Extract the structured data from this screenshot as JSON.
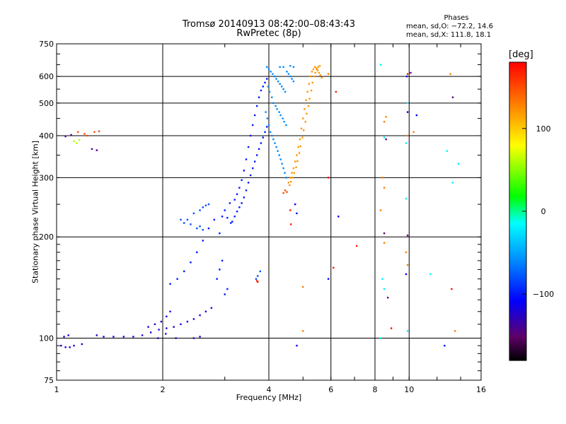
{
  "chart_data": {
    "type": "scatter",
    "title": "Tromsø 20140913 08:42:00–08:43:43",
    "subtitle": "RwPretec (8p)",
    "xlabel": "Frequency [MHz]",
    "ylabel": "Stationary phase Virtual Height [km]",
    "x_scale": "log",
    "y_scale": "log",
    "xlim": [
      1,
      16
    ],
    "ylim": [
      75,
      750
    ],
    "x_ticks": [
      1,
      2,
      4,
      6,
      8,
      10,
      16
    ],
    "x_tick_labels": [
      "1",
      "2",
      "4",
      "6",
      "8",
      "10",
      "16"
    ],
    "y_ticks": [
      75,
      100,
      200,
      300,
      400,
      500,
      600,
      750
    ],
    "y_tick_labels": [
      "75",
      "100",
      "200",
      "300",
      "400",
      "500",
      "600",
      "750"
    ],
    "grid": true,
    "phase_box": {
      "title": "Phases",
      "line_o": "mean, sd,O: −72.2, 14.6",
      "line_x": "mean, sd,X: 111.8, 18.1"
    },
    "colorbar": {
      "label": "[deg]",
      "range": [
        -180,
        180
      ],
      "ticks": [
        100,
        0,
        -100
      ],
      "tick_labels": [
        "100",
        "0",
        "−100"
      ]
    },
    "series": [
      {
        "phase": -120,
        "points": [
          [
            1.03,
            95
          ],
          [
            1.06,
            94
          ],
          [
            1.09,
            94
          ],
          [
            1.12,
            95
          ],
          [
            1.18,
            96
          ],
          [
            1.05,
            101
          ],
          [
            1.08,
            102
          ],
          [
            1.3,
            102
          ],
          [
            1.36,
            101
          ],
          [
            1.45,
            101
          ],
          [
            1.55,
            101
          ],
          [
            1.65,
            101
          ],
          [
            1.75,
            102
          ],
          [
            1.85,
            104
          ],
          [
            1.95,
            106
          ],
          [
            2.05,
            107
          ],
          [
            2.15,
            108
          ],
          [
            2.25,
            110
          ],
          [
            2.35,
            112
          ],
          [
            2.45,
            114
          ],
          [
            2.55,
            117
          ],
          [
            2.65,
            120
          ],
          [
            2.75,
            123
          ],
          [
            1.82,
            108
          ],
          [
            1.9,
            110
          ],
          [
            1.98,
            112
          ],
          [
            2.05,
            116
          ],
          [
            2.1,
            120
          ],
          [
            2.18,
            100
          ],
          [
            2.45,
            100
          ],
          [
            2.55,
            101
          ],
          [
            1.94,
            100
          ],
          [
            2.04,
            103
          ]
        ]
      },
      {
        "phase": -100,
        "points": [
          [
            2.1,
            145
          ],
          [
            2.2,
            150
          ],
          [
            2.3,
            158
          ],
          [
            2.4,
            168
          ],
          [
            2.5,
            180
          ],
          [
            2.6,
            195
          ],
          [
            2.7,
            212
          ],
          [
            2.8,
            225
          ],
          [
            2.85,
            150
          ],
          [
            2.9,
            160
          ],
          [
            2.95,
            170
          ],
          [
            3.0,
            135
          ],
          [
            3.05,
            140
          ],
          [
            2.9,
            205
          ],
          [
            2.95,
            230
          ],
          [
            3.15,
            222
          ],
          [
            3.2,
            230
          ],
          [
            3.25,
            238
          ],
          [
            3.3,
            245
          ],
          [
            3.35,
            252
          ],
          [
            3.4,
            262
          ],
          [
            3.45,
            275
          ],
          [
            3.5,
            290
          ],
          [
            3.55,
            305
          ],
          [
            3.6,
            320
          ],
          [
            3.65,
            335
          ],
          [
            3.7,
            350
          ],
          [
            3.75,
            365
          ],
          [
            3.8,
            380
          ],
          [
            3.85,
            395
          ],
          [
            3.9,
            410
          ],
          [
            3.95,
            425
          ],
          [
            3.2,
            258
          ],
          [
            3.25,
            268
          ],
          [
            3.3,
            280
          ],
          [
            3.35,
            295
          ],
          [
            3.4,
            315
          ],
          [
            3.45,
            340
          ],
          [
            3.5,
            370
          ],
          [
            3.55,
            400
          ],
          [
            3.6,
            430
          ],
          [
            3.65,
            460
          ],
          [
            3.7,
            490
          ],
          [
            3.75,
            520
          ],
          [
            3.8,
            545
          ],
          [
            3.85,
            560
          ],
          [
            3.9,
            575
          ],
          [
            3.95,
            590
          ],
          [
            3.1,
            252
          ],
          [
            3.0,
            240
          ],
          [
            3.05,
            228
          ],
          [
            3.12,
            220
          ]
        ]
      },
      {
        "phase": -80,
        "points": [
          [
            2.45,
            235
          ],
          [
            2.55,
            240
          ],
          [
            2.6,
            245
          ],
          [
            2.65,
            248
          ],
          [
            2.7,
            250
          ],
          [
            2.35,
            225
          ],
          [
            2.4,
            218
          ],
          [
            2.5,
            212
          ],
          [
            2.55,
            215
          ],
          [
            2.25,
            225
          ],
          [
            2.3,
            220
          ],
          [
            2.6,
            210
          ],
          [
            3.68,
            150
          ],
          [
            3.72,
            153
          ],
          [
            3.78,
            158
          ]
        ]
      },
      {
        "phase": -60,
        "points": [
          [
            3.95,
            640
          ],
          [
            4.0,
            630
          ],
          [
            4.05,
            620
          ],
          [
            4.1,
            610
          ],
          [
            4.15,
            600
          ],
          [
            4.2,
            590
          ],
          [
            4.25,
            580
          ],
          [
            4.3,
            570
          ],
          [
            4.35,
            560
          ],
          [
            4.4,
            550
          ],
          [
            4.45,
            540
          ],
          [
            4.5,
            620
          ],
          [
            4.55,
            610
          ],
          [
            4.6,
            600
          ],
          [
            4.65,
            590
          ],
          [
            4.7,
            580
          ],
          [
            3.98,
            560
          ],
          [
            4.02,
            540
          ],
          [
            4.08,
            520
          ],
          [
            4.12,
            500
          ],
          [
            4.18,
            490
          ],
          [
            4.22,
            480
          ],
          [
            4.28,
            470
          ],
          [
            4.32,
            460
          ],
          [
            4.38,
            450
          ],
          [
            4.42,
            440
          ],
          [
            4.48,
            430
          ],
          [
            3.92,
            470
          ],
          [
            3.96,
            450
          ],
          [
            4.0,
            430
          ],
          [
            4.04,
            410
          ],
          [
            4.08,
            400
          ],
          [
            4.12,
            390
          ],
          [
            4.16,
            380
          ],
          [
            4.2,
            370
          ],
          [
            4.24,
            360
          ],
          [
            4.28,
            350
          ],
          [
            4.32,
            340
          ],
          [
            4.36,
            330
          ],
          [
            4.4,
            320
          ],
          [
            4.44,
            310
          ],
          [
            4.48,
            300
          ],
          [
            4.3,
            640
          ],
          [
            4.4,
            640
          ],
          [
            4.6,
            645
          ],
          [
            4.7,
            640
          ]
        ]
      },
      {
        "phase": 120,
        "points": [
          [
            4.55,
            290
          ],
          [
            4.6,
            300
          ],
          [
            4.65,
            310
          ],
          [
            4.7,
            320
          ],
          [
            4.75,
            335
          ],
          [
            4.8,
            350
          ],
          [
            4.85,
            370
          ],
          [
            4.9,
            390
          ],
          [
            4.95,
            420
          ],
          [
            5.0,
            450
          ],
          [
            5.05,
            480
          ],
          [
            5.1,
            510
          ],
          [
            5.15,
            540
          ],
          [
            5.2,
            570
          ],
          [
            5.25,
            600
          ],
          [
            5.3,
            620
          ],
          [
            5.35,
            630
          ],
          [
            5.4,
            640
          ],
          [
            5.45,
            635
          ],
          [
            5.5,
            625
          ],
          [
            5.55,
            615
          ],
          [
            5.6,
            605
          ],
          [
            5.65,
            595
          ],
          [
            4.58,
            285
          ],
          [
            4.62,
            292
          ],
          [
            4.68,
            300
          ],
          [
            4.72,
            310
          ],
          [
            4.78,
            322
          ],
          [
            4.82,
            336
          ],
          [
            4.88,
            355
          ],
          [
            4.92,
            372
          ],
          [
            4.98,
            395
          ],
          [
            5.02,
            415
          ],
          [
            5.08,
            440
          ],
          [
            5.12,
            465
          ],
          [
            5.18,
            490
          ],
          [
            5.22,
            515
          ],
          [
            5.28,
            545
          ],
          [
            5.32,
            575
          ],
          [
            5.38,
            600
          ],
          [
            5.42,
            615
          ],
          [
            5.48,
            630
          ],
          [
            5.52,
            640
          ],
          [
            5.58,
            645
          ]
        ]
      },
      {
        "phase": 150,
        "points": [
          [
            4.4,
            270
          ],
          [
            4.45,
            275
          ],
          [
            4.5,
            272
          ],
          [
            1.15,
            410
          ],
          [
            1.2,
            405
          ],
          [
            1.28,
            410
          ],
          [
            1.32,
            412
          ],
          [
            1.22,
            400
          ]
        ]
      },
      {
        "phase": 60,
        "points": [
          [
            1.12,
            385
          ],
          [
            1.14,
            380
          ],
          [
            1.16,
            388
          ]
        ]
      },
      {
        "phase": -140,
        "points": [
          [
            1.06,
            398
          ],
          [
            1.1,
            402
          ],
          [
            1.26,
            365
          ],
          [
            1.3,
            362
          ]
        ]
      },
      {
        "phase": 170,
        "points": [
          [
            3.7,
            148
          ],
          [
            3.72,
            147
          ],
          [
            4.62,
            218
          ],
          [
            4.6,
            240
          ],
          [
            6.2,
            540
          ],
          [
            7.1,
            188
          ],
          [
            9.9,
            610
          ],
          [
            6.1,
            162
          ]
        ]
      },
      {
        "phase": -20,
        "points": [
          [
            8.3,
            650
          ],
          [
            8.5,
            395
          ],
          [
            9.9,
            500
          ],
          [
            8.4,
            150
          ],
          [
            8.5,
            140
          ],
          [
            8.3,
            100
          ],
          [
            13.8,
            330
          ],
          [
            12.8,
            360
          ],
          [
            13.3,
            290
          ],
          [
            9.8,
            260
          ],
          [
            9.9,
            105
          ],
          [
            11.5,
            155
          ],
          [
            9.8,
            380
          ]
        ]
      },
      {
        "phase": 130,
        "points": [
          [
            8.5,
            440
          ],
          [
            8.6,
            455
          ],
          [
            8.4,
            300
          ],
          [
            8.5,
            280
          ],
          [
            9.9,
            400
          ],
          [
            10.3,
            410
          ],
          [
            8.5,
            192
          ],
          [
            9.8,
            180
          ],
          [
            9.9,
            165
          ],
          [
            13.5,
            105
          ],
          [
            13.1,
            610
          ],
          [
            8.3,
            240
          ],
          [
            5.0,
            105
          ],
          [
            5.0,
            142
          ],
          [
            5.9,
            610
          ]
        ]
      },
      {
        "phase": -110,
        "points": [
          [
            9.9,
            470
          ],
          [
            10.5,
            460
          ],
          [
            4.75,
            250
          ],
          [
            4.8,
            235
          ],
          [
            6.3,
            230
          ],
          [
            9.85,
            600
          ],
          [
            12.6,
            95
          ],
          [
            4.8,
            95
          ],
          [
            9.8,
            155
          ],
          [
            5.9,
            150
          ]
        ]
      },
      {
        "phase": -150,
        "points": [
          [
            13.3,
            520
          ],
          [
            10.1,
            615
          ],
          [
            9.9,
            202
          ],
          [
            8.6,
            390
          ],
          [
            8.7,
            132
          ],
          [
            8.5,
            205
          ]
        ]
      },
      {
        "phase": 175,
        "points": [
          [
            8.9,
            107
          ],
          [
            13.2,
            140
          ],
          [
            5.9,
            300
          ]
        ]
      }
    ]
  }
}
